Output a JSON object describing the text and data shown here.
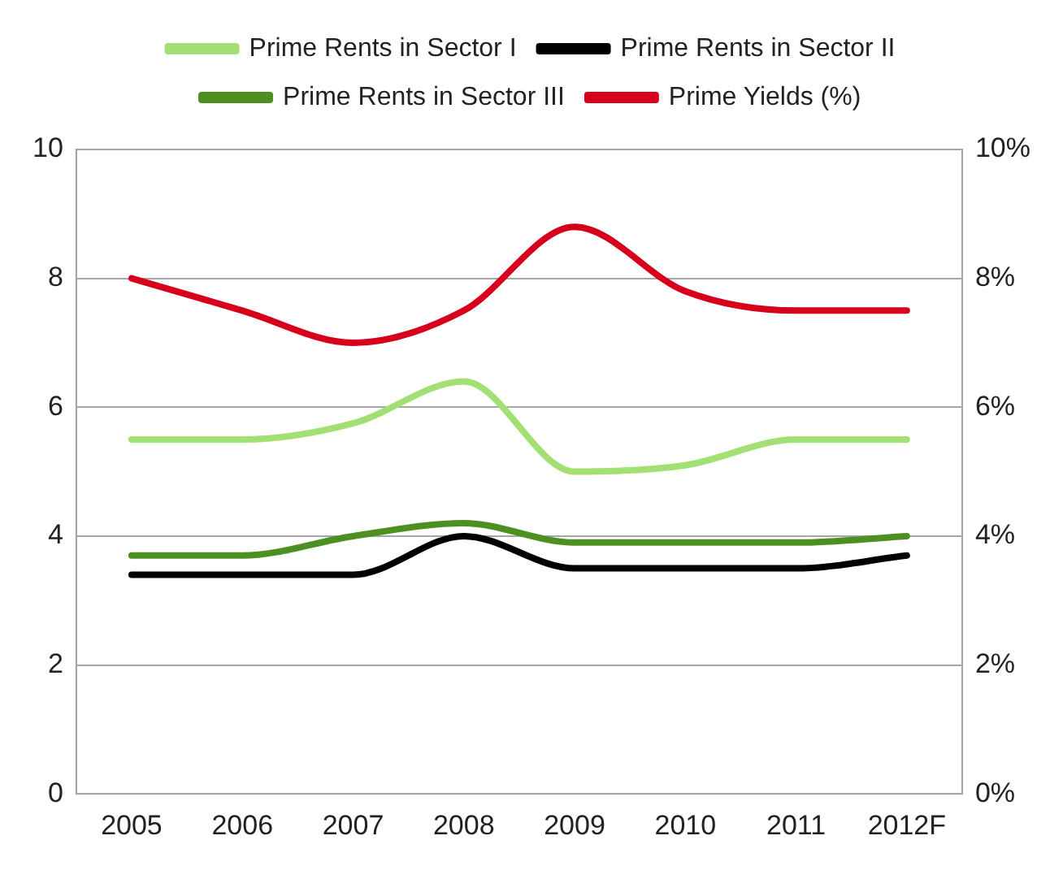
{
  "chart_data": {
    "type": "line",
    "categories": [
      "2005",
      "2006",
      "2007",
      "2008",
      "2009",
      "2010",
      "2011",
      "2012F"
    ],
    "series": [
      {
        "name": "Prime Rents in Sector I",
        "color": "#a3e074",
        "values": [
          5.5,
          5.5,
          5.75,
          6.4,
          5.0,
          5.1,
          5.5,
          5.5
        ]
      },
      {
        "name": "Prime Rents in Sector II",
        "color": "#000000",
        "values": [
          3.4,
          3.4,
          3.4,
          4.0,
          3.5,
          3.5,
          3.5,
          3.7
        ]
      },
      {
        "name": "Prime Rents in Sector III",
        "color": "#4e8f22",
        "values": [
          3.7,
          3.7,
          4.0,
          4.2,
          3.9,
          3.9,
          3.9,
          4.0
        ]
      },
      {
        "name": "Prime Yields (%)",
        "color": "#d6001c",
        "axis": "y2",
        "values": [
          8.0,
          7.5,
          7.0,
          7.5,
          8.8,
          7.8,
          7.5,
          7.5
        ]
      }
    ],
    "ylim": [
      0,
      10
    ],
    "yticks": [
      0,
      2,
      4,
      6,
      8,
      10
    ],
    "y2lim": [
      0,
      10
    ],
    "y2ticks": [
      {
        "value": 0,
        "label": "0%"
      },
      {
        "value": 2,
        "label": "2%"
      },
      {
        "value": 4,
        "label": "4%"
      },
      {
        "value": 6,
        "label": "6%"
      },
      {
        "value": 8,
        "label": "8%"
      },
      {
        "value": 10,
        "label": "10%"
      }
    ],
    "grid": "y",
    "legend": "top",
    "marker": "none",
    "line_style": "solid"
  }
}
